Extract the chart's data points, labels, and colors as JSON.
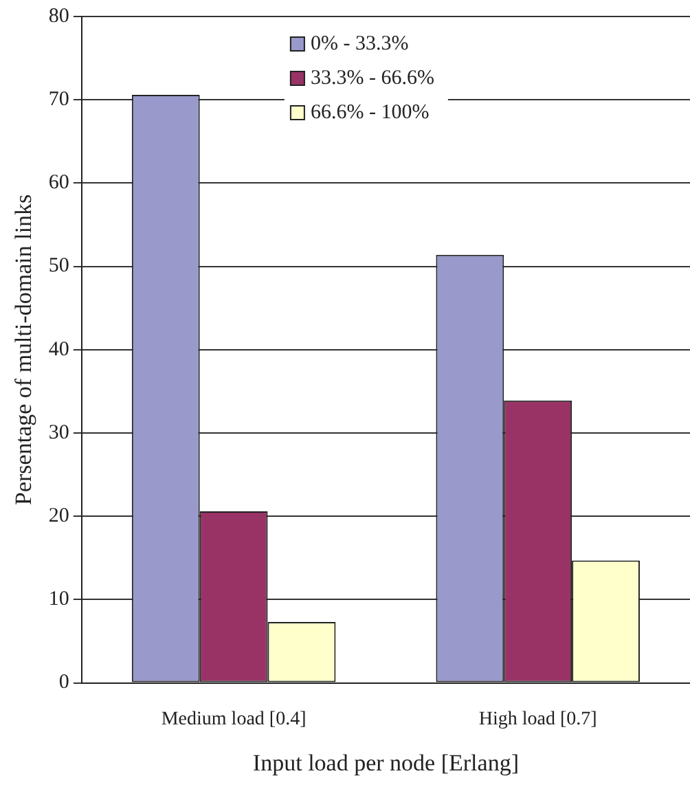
{
  "chart_data": {
    "type": "bar",
    "xlabel": "Input load per node [Erlang]",
    "ylabel": "Persentage of multi-domain links",
    "categories": [
      "Medium load [0.4]",
      "High load [0.7]"
    ],
    "series": [
      {
        "name": "0% - 33.3%",
        "color": "#9999cc",
        "values": [
          70.6,
          51.4
        ]
      },
      {
        "name": "33.3% - 66.6%",
        "color": "#993366",
        "values": [
          20.6,
          33.9
        ]
      },
      {
        "name": "66.6% - 100%",
        "color": "#ffffcc",
        "values": [
          7.3,
          14.7
        ]
      }
    ],
    "ylim": [
      0,
      80
    ],
    "yticks": [
      0,
      10,
      20,
      30,
      40,
      50,
      60,
      70,
      80
    ],
    "grid": "y",
    "legend": "top"
  }
}
